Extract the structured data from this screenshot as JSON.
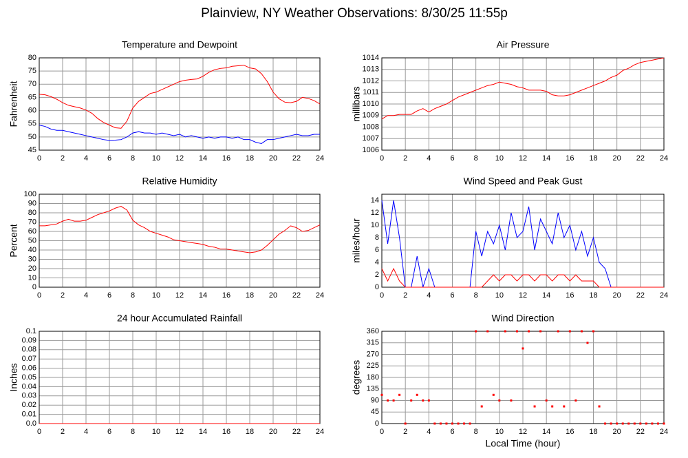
{
  "page_title": "Plainview, NY Weather Observations: 8/30/25 11:55p",
  "chart_data": [
    {
      "type": "line",
      "title": "Temperature and Dewpoint",
      "y_label": "Fahrenheit",
      "grid": true,
      "x": [
        0,
        0.5,
        1,
        1.5,
        2,
        2.5,
        3,
        3.5,
        4,
        4.5,
        5,
        5.5,
        6,
        6.5,
        7,
        7.5,
        8,
        8.5,
        9,
        9.5,
        10,
        10.5,
        11,
        11.5,
        12,
        12.5,
        13,
        13.5,
        14,
        14.5,
        15,
        15.5,
        16,
        16.5,
        17,
        17.5,
        18,
        18.5,
        19,
        19.5,
        20,
        20.5,
        21,
        21.5,
        22,
        22.5,
        23,
        23.5,
        24
      ],
      "series": [
        {
          "color": "#ff0000",
          "values": [
            66.2,
            66,
            65.3,
            64.3,
            63,
            62,
            61.5,
            61,
            60.2,
            59,
            57,
            55.5,
            54.5,
            53.5,
            53.3,
            56,
            61,
            63.5,
            65,
            66.5,
            67,
            68,
            69,
            70,
            71,
            71.5,
            71.8,
            72,
            73,
            74.5,
            75.5,
            76,
            76.2,
            76.8,
            77,
            77.2,
            76.2,
            75.8,
            74,
            71,
            67,
            64.5,
            63.2,
            63,
            63.5,
            65,
            64.6,
            63.8,
            62.5
          ]
        },
        {
          "color": "#0000ff",
          "values": [
            54.5,
            54,
            53,
            52.5,
            52.5,
            52,
            51.5,
            51,
            50.5,
            50,
            49.5,
            49,
            48.7,
            48.8,
            49,
            50,
            51.5,
            52,
            51.5,
            51.5,
            51,
            51.5,
            51,
            50.5,
            51,
            50,
            50.5,
            50,
            49.5,
            50,
            49.5,
            50,
            50,
            49.5,
            50,
            49,
            49,
            48,
            47.5,
            49,
            49,
            49.5,
            50,
            50.5,
            51,
            50.5,
            50.5,
            51,
            51
          ]
        }
      ],
      "xlim": [
        0,
        24
      ],
      "xticks": [
        0,
        2,
        4,
        6,
        8,
        10,
        12,
        14,
        16,
        18,
        20,
        22,
        24
      ],
      "ylim": [
        45,
        80
      ],
      "yticks": [
        45,
        50,
        55,
        60,
        65,
        70,
        75,
        80
      ]
    },
    {
      "type": "line",
      "title": "Air Pressure",
      "y_label": "millibars",
      "grid": true,
      "x": [
        0,
        0.5,
        1,
        1.5,
        2,
        2.5,
        3,
        3.5,
        4,
        4.5,
        5,
        5.5,
        6,
        6.5,
        7,
        7.5,
        8,
        8.5,
        9,
        9.5,
        10,
        10.5,
        11,
        11.5,
        12,
        12.5,
        13,
        13.5,
        14,
        14.5,
        15,
        15.5,
        16,
        16.5,
        17,
        17.5,
        18,
        18.5,
        19,
        19.5,
        20,
        20.5,
        21,
        21.5,
        22,
        22.5,
        23,
        23.5,
        24
      ],
      "series": [
        {
          "color": "#ff0000",
          "values": [
            1008.7,
            1009,
            1009,
            1009.1,
            1009.1,
            1009.1,
            1009.4,
            1009.6,
            1009.3,
            1009.6,
            1009.8,
            1010,
            1010.3,
            1010.6,
            1010.8,
            1011,
            1011.2,
            1011.4,
            1011.6,
            1011.7,
            1011.9,
            1011.8,
            1011.7,
            1011.5,
            1011.4,
            1011.2,
            1011.2,
            1011.2,
            1011.1,
            1010.8,
            1010.7,
            1010.7,
            1010.8,
            1011,
            1011.2,
            1011.4,
            1011.6,
            1011.8,
            1012,
            1012.3,
            1012.5,
            1012.9,
            1013.1,
            1013.4,
            1013.6,
            1013.7,
            1013.8,
            1013.9,
            1014
          ]
        }
      ],
      "xlim": [
        0,
        24
      ],
      "xticks": [
        0,
        2,
        4,
        6,
        8,
        10,
        12,
        14,
        16,
        18,
        20,
        22,
        24
      ],
      "ylim": [
        1006,
        1014
      ],
      "yticks": [
        1006,
        1007,
        1008,
        1009,
        1010,
        1011,
        1012,
        1013,
        1014
      ]
    },
    {
      "type": "line",
      "title": "Relative Humidity",
      "y_label": "Percent",
      "grid": true,
      "x": [
        0,
        0.5,
        1,
        1.5,
        2,
        2.5,
        3,
        3.5,
        4,
        4.5,
        5,
        5.5,
        6,
        6.5,
        7,
        7.5,
        8,
        8.5,
        9,
        9.5,
        10,
        10.5,
        11,
        11.5,
        12,
        12.5,
        13,
        13.5,
        14,
        14.5,
        15,
        15.5,
        16,
        16.5,
        17,
        17.5,
        18,
        18.5,
        19,
        19.5,
        20,
        20.5,
        21,
        21.5,
        22,
        22.5,
        23,
        23.5,
        24
      ],
      "series": [
        {
          "color": "#ff0000",
          "values": [
            66,
            66,
            67,
            68,
            71,
            73,
            71,
            71,
            72,
            75,
            78,
            80,
            82,
            85,
            87,
            83,
            72,
            67,
            64,
            60,
            58,
            56,
            54,
            51,
            50,
            49,
            48,
            47,
            46,
            44,
            43,
            41,
            41,
            40,
            39,
            38,
            37,
            38,
            40,
            45,
            51,
            57,
            61,
            66,
            64,
            60,
            61,
            64,
            67
          ]
        }
      ],
      "xlim": [
        0,
        24
      ],
      "xticks": [
        0,
        2,
        4,
        6,
        8,
        10,
        12,
        14,
        16,
        18,
        20,
        22,
        24
      ],
      "ylim": [
        0,
        100
      ],
      "yticks": [
        0,
        10,
        20,
        30,
        40,
        50,
        60,
        70,
        80,
        90,
        100
      ]
    },
    {
      "type": "line",
      "title": "Wind Speed and Peak Gust",
      "y_label": "miles/hour",
      "grid": true,
      "x": [
        0,
        0.5,
        1,
        1.5,
        2,
        2.5,
        3,
        3.5,
        4,
        4.5,
        5,
        5.5,
        6,
        6.5,
        7,
        7.5,
        8,
        8.5,
        9,
        9.5,
        10,
        10.5,
        11,
        11.5,
        12,
        12.5,
        13,
        13.5,
        14,
        14.5,
        15,
        15.5,
        16,
        16.5,
        17,
        17.5,
        18,
        18.5,
        19,
        19.5,
        20,
        20.5,
        21,
        21.5,
        22,
        22.5,
        23,
        23.5,
        24
      ],
      "series": [
        {
          "color": "#0000ff",
          "values": [
            14,
            7,
            14,
            8,
            0,
            0,
            5,
            0,
            3,
            0,
            0,
            0,
            0,
            0,
            0,
            0,
            9,
            5,
            9,
            7,
            10,
            6,
            12,
            8,
            9,
            13,
            6,
            11,
            9,
            7,
            12,
            8,
            10,
            6,
            9,
            5,
            8,
            4,
            3,
            0,
            0,
            0,
            0,
            0,
            0,
            0,
            0,
            0,
            0
          ]
        },
        {
          "color": "#ff0000",
          "values": [
            3,
            1,
            3,
            1,
            0,
            0,
            0,
            0,
            0,
            0,
            0,
            0,
            0,
            0,
            0,
            0,
            0,
            0,
            1,
            2,
            1,
            2,
            2,
            1,
            2,
            2,
            1,
            2,
            2,
            1,
            2,
            2,
            1,
            2,
            1,
            1,
            1,
            0,
            0,
            0,
            0,
            0,
            0,
            0,
            0,
            0,
            0,
            0,
            0
          ]
        }
      ],
      "xlim": [
        0,
        24
      ],
      "xticks": [
        0,
        2,
        4,
        6,
        8,
        10,
        12,
        14,
        16,
        18,
        20,
        22,
        24
      ],
      "ylim": [
        0,
        15
      ],
      "yticks": [
        0,
        2,
        4,
        6,
        8,
        10,
        12,
        14
      ]
    },
    {
      "type": "line",
      "title": "24 hour Accumulated Rainfall",
      "y_label": "Inches",
      "grid": true,
      "x": [
        0,
        24
      ],
      "series": [
        {
          "color": "#ff0000",
          "values": [
            0,
            0
          ]
        }
      ],
      "xlim": [
        0,
        24
      ],
      "xticks": [
        0,
        2,
        4,
        6,
        8,
        10,
        12,
        14,
        16,
        18,
        20,
        22,
        24
      ],
      "ylim": [
        0,
        0.1
      ],
      "yticks": [
        {
          "value": 0,
          "label": "0.0"
        },
        0.01,
        0.02,
        0.03,
        0.04,
        0.05,
        0.06,
        0.07,
        0.08,
        0.09,
        0.1
      ]
    },
    {
      "type": "scatter",
      "title": "Wind Direction",
      "y_label": "degrees",
      "x_label": "Local Time (hour)",
      "grid": true,
      "x": [
        0,
        0.5,
        1,
        1.5,
        2,
        2.5,
        3,
        3.5,
        4,
        4.5,
        5,
        5.5,
        6,
        6.5,
        7,
        7.5,
        8,
        8.5,
        9,
        9.5,
        10,
        10.5,
        11,
        11.5,
        12,
        12.5,
        13,
        13.5,
        14,
        14.5,
        15,
        15.5,
        16,
        16.5,
        17,
        17.5,
        18,
        18.5,
        19,
        19.5,
        20,
        20.5,
        21,
        21.5,
        22,
        22.5,
        23,
        23.5,
        24
      ],
      "series": [
        {
          "color": "#ff0000",
          "values": [
            112,
            90,
            90,
            112,
            0,
            90,
            112,
            90,
            90,
            0,
            0,
            0,
            0,
            0,
            0,
            0,
            360,
            67,
            360,
            112,
            90,
            360,
            90,
            360,
            293,
            360,
            67,
            360,
            90,
            67,
            360,
            67,
            360,
            90,
            360,
            315,
            360,
            67,
            0,
            0,
            0,
            0,
            0,
            0,
            0,
            0,
            0,
            0,
            0
          ]
        }
      ],
      "xlim": [
        0,
        24
      ],
      "xticks": [
        0,
        2,
        4,
        6,
        8,
        10,
        12,
        14,
        16,
        18,
        20,
        22,
        24
      ],
      "ylim": [
        0,
        360
      ],
      "yticks": [
        0,
        45,
        90,
        135,
        180,
        225,
        270,
        315,
        360
      ]
    }
  ]
}
